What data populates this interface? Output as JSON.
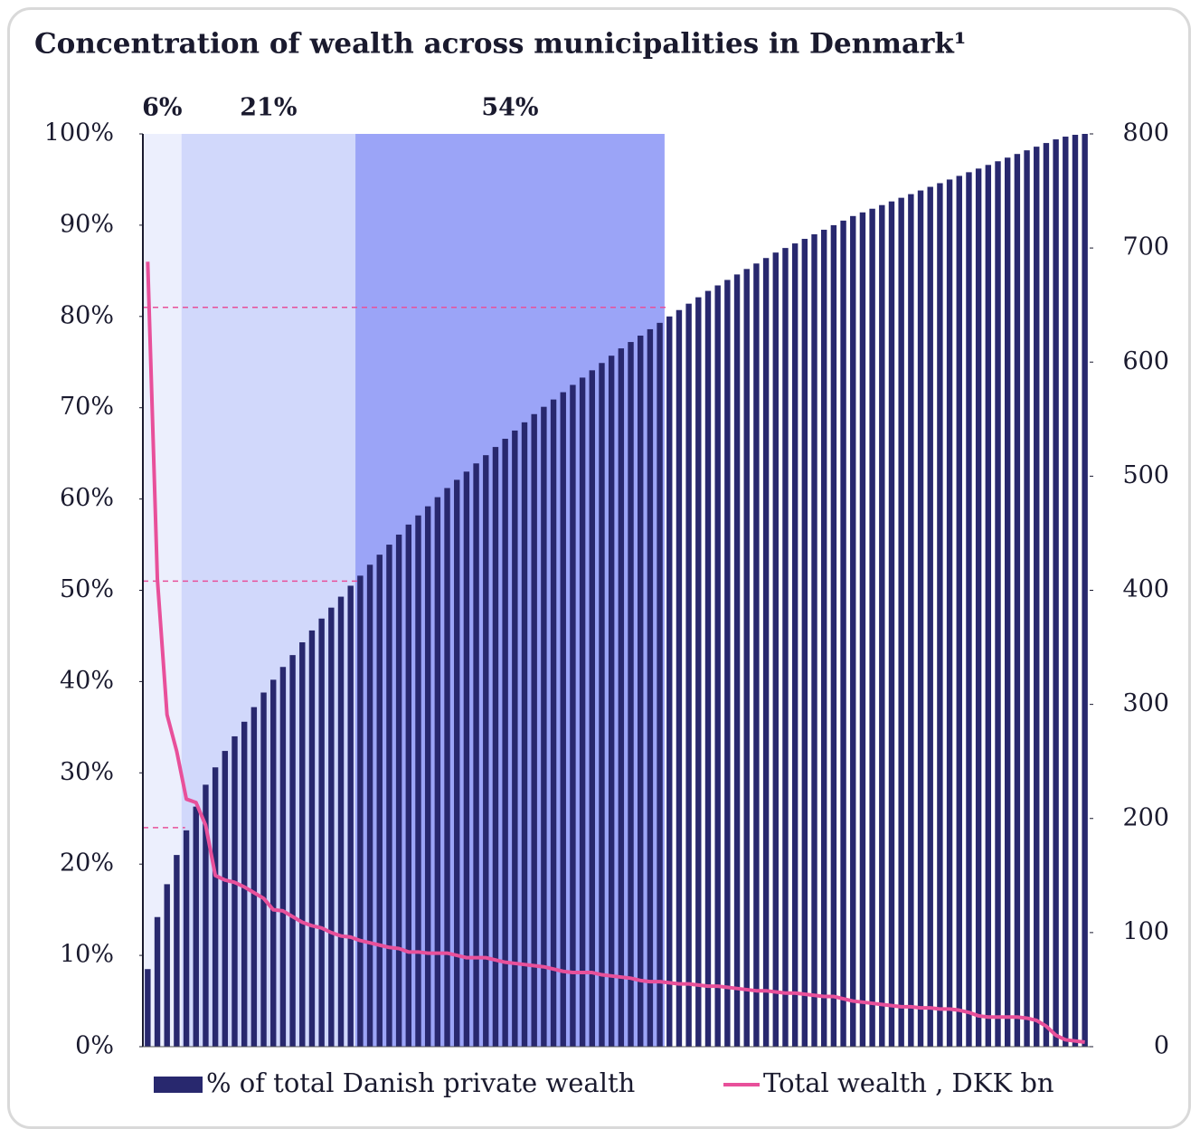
{
  "chart_data": {
    "type": "bar",
    "title": "Concentration of wealth across municipalities in Denmark¹",
    "categories": [
      null,
      null,
      null,
      null,
      null,
      null,
      null,
      null,
      null,
      null,
      null,
      null,
      null,
      null,
      null,
      null,
      null,
      null,
      null,
      null,
      null,
      null,
      null,
      null,
      null,
      null,
      null,
      null,
      null,
      null,
      null,
      null,
      null,
      null,
      null,
      null,
      null,
      null,
      null,
      null,
      null,
      null,
      null,
      null,
      null,
      null,
      null,
      null,
      null,
      null,
      null,
      null,
      null,
      null,
      null,
      null,
      null,
      null,
      null,
      null,
      null,
      null,
      null,
      null,
      null,
      null,
      null,
      null,
      null,
      null,
      null,
      null,
      null,
      null,
      null,
      null,
      null,
      null,
      null,
      null,
      null,
      null,
      null,
      null,
      null,
      null,
      null,
      null,
      null,
      null,
      null,
      null,
      null,
      null,
      null,
      null,
      null,
      null
    ],
    "series": [
      {
        "name": "% of total Danish private wealth",
        "color": "#28286e",
        "type": "bar",
        "values": [
          8.5,
          14.2,
          17.8,
          21.0,
          23.7,
          26.3,
          28.7,
          30.6,
          32.4,
          34.0,
          35.6,
          37.2,
          38.8,
          40.2,
          41.6,
          42.9,
          44.3,
          45.6,
          46.9,
          48.1,
          49.3,
          50.5,
          51.6,
          52.8,
          53.9,
          55.0,
          56.1,
          57.2,
          58.2,
          59.2,
          60.2,
          61.2,
          62.1,
          63.0,
          63.9,
          64.8,
          65.7,
          66.6,
          67.5,
          68.4,
          69.3,
          70.1,
          70.9,
          71.7,
          72.5,
          73.3,
          74.1,
          74.9,
          75.7,
          76.5,
          77.2,
          77.9,
          78.6,
          79.3,
          80.0,
          80.7,
          81.4,
          82.1,
          82.8,
          83.4,
          84.0,
          84.6,
          85.2,
          85.8,
          86.4,
          87.0,
          87.5,
          88.0,
          88.5,
          89.0,
          89.5,
          90.0,
          90.5,
          91.0,
          91.4,
          91.8,
          92.2,
          92.6,
          93.0,
          93.4,
          93.8,
          94.2,
          94.6,
          95.0,
          95.4,
          95.8,
          96.2,
          96.6,
          97.0,
          97.4,
          97.8,
          98.2,
          98.6,
          99.0,
          99.4,
          99.7,
          99.9,
          100
        ]
      },
      {
        "name": "Total wealth , DKK bn",
        "color": "#e8509a",
        "type": "line",
        "axis": "y2",
        "values": [
          688,
          410,
          291,
          259,
          217,
          214,
          194,
          150,
          146,
          144,
          140,
          135,
          130,
          120,
          119,
          114,
          109,
          106,
          104,
          100,
          97,
          96,
          93,
          91,
          89,
          87,
          86,
          83,
          83,
          82,
          82,
          82,
          80,
          78,
          78,
          78,
          76,
          74,
          73,
          72,
          71,
          70,
          68,
          66,
          65,
          65,
          65,
          63,
          62,
          61,
          60,
          58,
          57,
          57,
          56,
          55,
          55,
          54,
          53,
          53,
          52,
          51,
          50,
          49,
          49,
          48,
          47,
          47,
          46,
          45,
          44,
          44,
          42,
          40,
          39,
          38,
          37,
          36,
          35,
          35,
          34,
          34,
          33,
          33,
          32,
          30,
          27,
          26,
          26,
          26,
          26,
          25,
          23,
          18,
          10,
          6,
          5,
          4
        ]
      }
    ],
    "bands": [
      {
        "label": "6%",
        "start": 0,
        "end": 4,
        "color": "#eceffd",
        "reference": 24
      },
      {
        "label": "21%",
        "start": 4,
        "end": 22,
        "color": "#d1d8fb",
        "reference": 51
      },
      {
        "label": "54%",
        "start": 22,
        "end": 54,
        "color": "#9ba4f7",
        "reference": 81
      }
    ],
    "ylim": [
      0,
      100
    ],
    "yticks": [
      {
        "value": 0,
        "label": "0%"
      },
      {
        "value": 10,
        "label": "10%"
      },
      {
        "value": 20,
        "label": "20%"
      },
      {
        "value": 30,
        "label": "30%"
      },
      {
        "value": 40,
        "label": "40%"
      },
      {
        "value": 50,
        "label": "50%"
      },
      {
        "value": 60,
        "label": "60%"
      },
      {
        "value": 70,
        "label": "70%"
      },
      {
        "value": 80,
        "label": "80%"
      },
      {
        "value": 90,
        "label": "90%"
      },
      {
        "value": 100,
        "label": "100%"
      }
    ],
    "y2lim": [
      0,
      800
    ],
    "y2ticks": [
      0,
      100,
      200,
      300,
      400,
      500,
      600,
      700,
      800
    ],
    "reference_line_color": "#e8509a",
    "legend": "bottom"
  }
}
